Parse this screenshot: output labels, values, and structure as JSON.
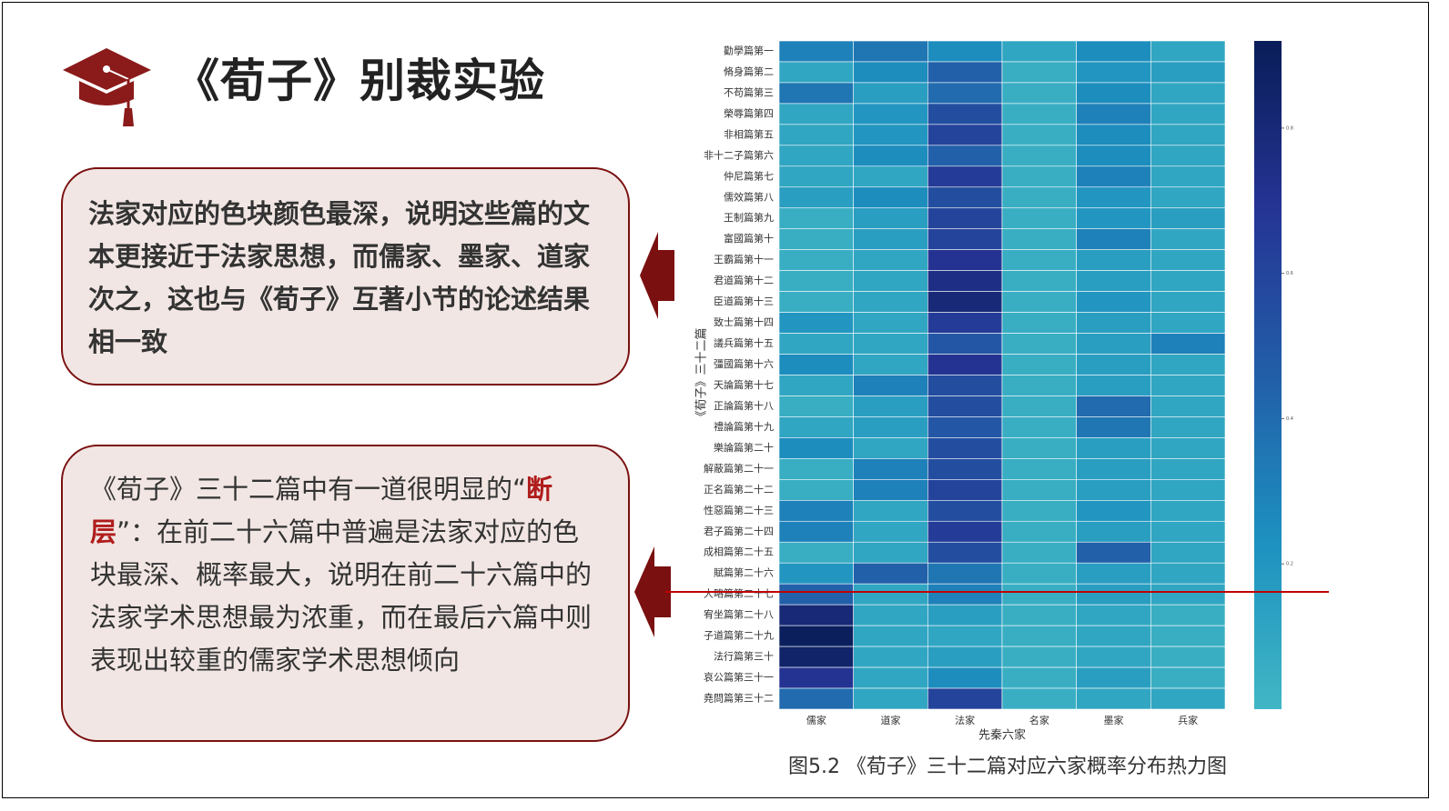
{
  "header": {
    "title": "《荀子》别裁实验"
  },
  "notes": [
    {
      "text": "法家对应的色块颜色最深，说明这些篇的文本更接近于法家思想，而儒家、墨家、道家次之，这也与《荀子》互著小节的论述结果相一致"
    },
    {
      "before": "《荀子》三十二篇中有一道很明显的“",
      "highlight": "断层",
      "after": "”：在前二十六篇中普遍是法家对应的色块最深、概率最大，说明在前二十六篇中的法家学术思想最为浓重，而在最后六篇中则表现出较重的儒家学术思想倾向"
    }
  ],
  "chart_data": {
    "type": "heatmap",
    "caption": "图5.2 《荀子》三十二篇对应六家概率分布热力图",
    "xlabel": "先秦六家",
    "ylabel": "《荀子》三十二篇",
    "categories": [
      "儒家",
      "道家",
      "法家",
      "名家",
      "墨家",
      "兵家"
    ],
    "rows": [
      "勸學篇第一",
      "脩身篇第二",
      "不苟篇第三",
      "榮辱篇第四",
      "非相篇第五",
      "非十二子篇第六",
      "仲尼篇第七",
      "儒效篇第八",
      "王制篇第九",
      "富國篇第十",
      "王霸篇第十一",
      "君道篇第十二",
      "臣道篇第十三",
      "致士篇第十四",
      "議兵篇第十五",
      "彊國篇第十六",
      "天論篇第十七",
      "正論篇第十八",
      "禮論篇第十九",
      "樂論篇第二十",
      "解蔽篇第二十一",
      "正名篇第二十二",
      "性惡篇第二十三",
      "君子篇第二十四",
      "成相篇第二十五",
      "賦篇第二十六",
      "大略篇第二十七",
      "宥坐篇第二十八",
      "子道篇第二十九",
      "法行篇第三十",
      "哀公篇第三十一",
      "堯問篇第三十二"
    ],
    "values": [
      [
        0.3,
        0.35,
        0.25,
        0.1,
        0.25,
        0.1
      ],
      [
        0.1,
        0.25,
        0.45,
        0.05,
        0.2,
        0.15
      ],
      [
        0.35,
        0.15,
        0.4,
        0.05,
        0.25,
        0.1
      ],
      [
        0.1,
        0.2,
        0.55,
        0.05,
        0.3,
        0.1
      ],
      [
        0.1,
        0.2,
        0.6,
        0.05,
        0.25,
        0.1
      ],
      [
        0.1,
        0.25,
        0.45,
        0.05,
        0.25,
        0.1
      ],
      [
        0.1,
        0.1,
        0.65,
        0.05,
        0.3,
        0.1
      ],
      [
        0.15,
        0.25,
        0.55,
        0.05,
        0.2,
        0.1
      ],
      [
        0.05,
        0.15,
        0.6,
        0.05,
        0.2,
        0.15
      ],
      [
        0.05,
        0.15,
        0.6,
        0.05,
        0.3,
        0.1
      ],
      [
        0.05,
        0.1,
        0.7,
        0.05,
        0.15,
        0.1
      ],
      [
        0.05,
        0.1,
        0.75,
        0.05,
        0.15,
        0.1
      ],
      [
        0.05,
        0.1,
        0.8,
        0.05,
        0.2,
        0.1
      ],
      [
        0.2,
        0.1,
        0.65,
        0.05,
        0.15,
        0.1
      ],
      [
        0.1,
        0.1,
        0.5,
        0.05,
        0.15,
        0.3
      ],
      [
        0.25,
        0.1,
        0.7,
        0.05,
        0.15,
        0.1
      ],
      [
        0.1,
        0.3,
        0.55,
        0.05,
        0.15,
        0.1
      ],
      [
        0.05,
        0.15,
        0.55,
        0.05,
        0.4,
        0.1
      ],
      [
        0.1,
        0.15,
        0.5,
        0.05,
        0.35,
        0.1
      ],
      [
        0.25,
        0.1,
        0.55,
        0.05,
        0.15,
        0.1
      ],
      [
        0.05,
        0.3,
        0.55,
        0.05,
        0.15,
        0.1
      ],
      [
        0.05,
        0.3,
        0.6,
        0.05,
        0.15,
        0.1
      ],
      [
        0.3,
        0.1,
        0.55,
        0.05,
        0.2,
        0.1
      ],
      [
        0.3,
        0.1,
        0.65,
        0.05,
        0.15,
        0.1
      ],
      [
        0.05,
        0.1,
        0.55,
        0.05,
        0.45,
        0.1
      ],
      [
        0.2,
        0.45,
        0.35,
        0.05,
        0.15,
        0.1
      ],
      [
        0.45,
        0.1,
        0.3,
        0.05,
        0.15,
        0.1
      ],
      [
        0.8,
        0.1,
        0.15,
        0.05,
        0.1,
        0.05
      ],
      [
        0.9,
        0.1,
        0.1,
        0.05,
        0.1,
        0.05
      ],
      [
        0.85,
        0.1,
        0.15,
        0.05,
        0.1,
        0.05
      ],
      [
        0.7,
        0.1,
        0.25,
        0.05,
        0.15,
        0.05
      ],
      [
        0.4,
        0.1,
        0.6,
        0.05,
        0.1,
        0.1
      ]
    ],
    "vlim": [
      0,
      0.92
    ],
    "colorbar_ticks": [
      0.2,
      0.4,
      0.6,
      0.8
    ],
    "colormap": [
      "#41b6c4",
      "#1d91c0",
      "#225ea8",
      "#253494",
      "#081d58"
    ]
  }
}
